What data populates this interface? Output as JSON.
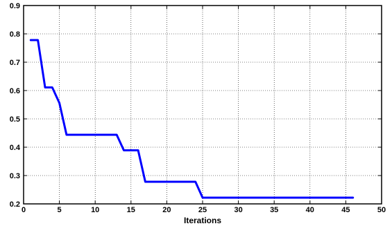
{
  "chart_data": {
    "type": "line",
    "title": "",
    "xlabel": "Iterations",
    "ylabel": "",
    "xlim": [
      0,
      50
    ],
    "ylim": [
      0.2,
      0.9
    ],
    "x_ticks": [
      0,
      5,
      10,
      15,
      20,
      25,
      30,
      35,
      40,
      45,
      50
    ],
    "y_ticks": [
      0.2,
      0.3,
      0.4,
      0.5,
      0.6,
      0.7,
      0.8,
      0.9
    ],
    "grid": true,
    "legend": "none",
    "series": [
      {
        "color": "#0000ff",
        "x": [
          1,
          2,
          3,
          4,
          5,
          6,
          13,
          14,
          16,
          17,
          24,
          25,
          46
        ],
        "y": [
          0.778,
          0.778,
          0.611,
          0.611,
          0.556,
          0.444,
          0.444,
          0.389,
          0.389,
          0.278,
          0.278,
          0.222,
          0.222
        ]
      }
    ]
  }
}
